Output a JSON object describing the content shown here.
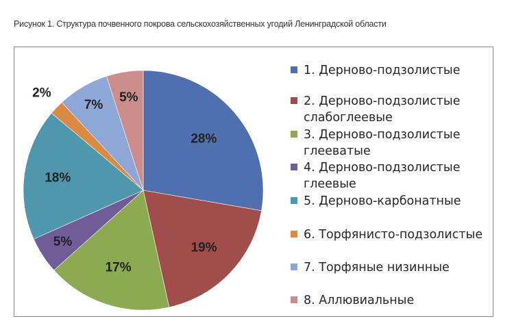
{
  "caption": "Рисунок 1. Структура почвенного покрова сельскохозяйственных угодий Ленинградской области",
  "chart_data": {
    "type": "pie",
    "title": "",
    "categories": [
      "1. Дерново-подзолистые",
      "2. Дерново-подзолистые\nслабоглеевые",
      "3. Дерново-подзолистые\nглееватые",
      "4. Дерново-подзолистые\nглеевые",
      "5. Дерново-карбонатные",
      "6. Торфянисто-подзолистые",
      "7. Торфяные низинные",
      "8. Аллювиальные"
    ],
    "values": [
      28,
      19,
      17,
      5,
      18,
      2,
      7,
      5
    ],
    "labels": [
      "28%",
      "19%",
      "17%",
      "5%",
      "18%",
      "2%",
      "7%",
      "5%"
    ],
    "colors": [
      "#4F6FAE",
      "#A04D4B",
      "#8BAA52",
      "#6F5C98",
      "#4E97AC",
      "#DB8A43",
      "#8EA7D6",
      "#CC8E8D"
    ],
    "legend_position": "right",
    "start_angle_deg": 0,
    "direction": "clockwise"
  }
}
